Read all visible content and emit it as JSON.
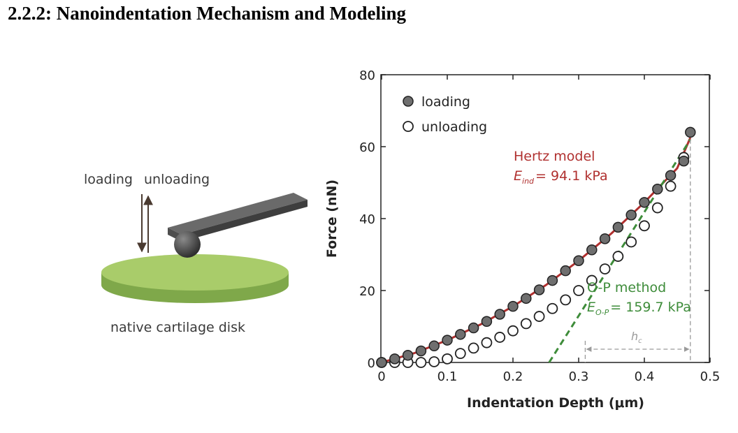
{
  "section_heading": "2.2.2: Nanoindentation Mechanism and Modeling",
  "schematic": {
    "label_loading": "loading",
    "label_unloading": "unloading",
    "label_disk": "native cartilage disk",
    "colors": {
      "disk_top": "#a9cc6a",
      "disk_side": "#7fa84a",
      "cantilever": "#5c5c5c",
      "tip": "#3f3f3f"
    }
  },
  "chart_data": {
    "type": "scatter",
    "xlabel": "Indentation Depth (μm)",
    "ylabel": "Force (nN)",
    "xlim": [
      0,
      0.5
    ],
    "ylim": [
      0,
      80
    ],
    "x_ticks": [
      "0",
      "0.1",
      "0.2",
      "0.3",
      "0.4",
      "0.5"
    ],
    "y_ticks": [
      "0",
      "20",
      "40",
      "60",
      "80"
    ],
    "legend_position": "top-left",
    "series": [
      {
        "name": "loading",
        "marker": "filled-circle",
        "color": "#6f6f6f",
        "x": [
          0.0,
          0.02,
          0.04,
          0.06,
          0.08,
          0.1,
          0.12,
          0.14,
          0.16,
          0.18,
          0.2,
          0.22,
          0.24,
          0.26,
          0.28,
          0.3,
          0.32,
          0.34,
          0.36,
          0.38,
          0.4,
          0.42,
          0.44,
          0.46,
          0.47
        ],
        "y": [
          0.0,
          1.0,
          2.0,
          3.2,
          4.6,
          6.2,
          7.8,
          9.6,
          11.4,
          13.4,
          15.6,
          17.8,
          20.2,
          22.8,
          25.5,
          28.3,
          31.3,
          34.4,
          37.6,
          41.0,
          44.5,
          48.2,
          52.0,
          56.0,
          64.0
        ]
      },
      {
        "name": "unloading",
        "marker": "open-circle",
        "color": "#222222",
        "x": [
          0.0,
          0.02,
          0.04,
          0.06,
          0.08,
          0.1,
          0.12,
          0.14,
          0.16,
          0.18,
          0.2,
          0.22,
          0.24,
          0.26,
          0.28,
          0.3,
          0.32,
          0.34,
          0.36,
          0.38,
          0.4,
          0.42,
          0.44,
          0.46
        ],
        "y": [
          0.0,
          0.0,
          0.0,
          0.0,
          0.2,
          1.0,
          2.5,
          4.0,
          5.5,
          7.0,
          8.8,
          10.8,
          12.8,
          15.0,
          17.4,
          20.0,
          22.8,
          26.0,
          29.5,
          33.5,
          38.0,
          43.0,
          49.0,
          57.0
        ]
      }
    ],
    "fits": [
      {
        "name": "Hertz model",
        "color": "#b0302f",
        "style": "solid",
        "x": [
          0.0,
          0.05,
          0.1,
          0.15,
          0.2,
          0.25,
          0.3,
          0.35,
          0.4,
          0.45,
          0.47
        ],
        "y": [
          0.0,
          2.6,
          6.2,
          10.5,
          15.6,
          21.5,
          28.3,
          35.9,
          44.5,
          54.0,
          62.5
        ]
      },
      {
        "name": "O-P method",
        "color": "#3e8c3a",
        "style": "dashed",
        "x": [
          0.255,
          0.47
        ],
        "y": [
          0.0,
          62.0
        ]
      }
    ],
    "annotations": {
      "hertz_label": "Hertz model",
      "hertz_value": "= 94.1 kPa",
      "hertz_symbol": "E",
      "hertz_subscript": "ind",
      "op_label": "O-P method",
      "op_value": "= 159.7 kPa",
      "op_symbol": "E",
      "op_subscript": "O-P",
      "hc_symbol": "h",
      "hc_subscript": "c",
      "hc_range": [
        0.31,
        0.47
      ]
    }
  }
}
